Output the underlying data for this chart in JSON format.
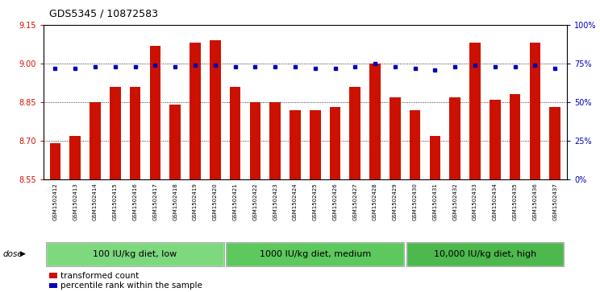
{
  "title": "GDS5345 / 10872583",
  "samples": [
    "GSM1502412",
    "GSM1502413",
    "GSM1502414",
    "GSM1502415",
    "GSM1502416",
    "GSM1502417",
    "GSM1502418",
    "GSM1502419",
    "GSM1502420",
    "GSM1502421",
    "GSM1502422",
    "GSM1502423",
    "GSM1502424",
    "GSM1502425",
    "GSM1502426",
    "GSM1502427",
    "GSM1502428",
    "GSM1502429",
    "GSM1502430",
    "GSM1502431",
    "GSM1502432",
    "GSM1502433",
    "GSM1502434",
    "GSM1502435",
    "GSM1502436",
    "GSM1502437"
  ],
  "bar_values": [
    8.69,
    8.72,
    8.85,
    8.91,
    8.91,
    9.07,
    8.84,
    9.08,
    9.09,
    8.91,
    8.85,
    8.85,
    8.82,
    8.82,
    8.83,
    8.91,
    9.0,
    8.87,
    8.82,
    8.72,
    8.87,
    9.08,
    8.86,
    8.88,
    9.08,
    8.83
  ],
  "percentile_values": [
    72,
    72,
    73,
    73,
    73,
    74,
    73,
    74,
    74,
    73,
    73,
    73,
    73,
    72,
    72,
    73,
    75,
    73,
    72,
    71,
    73,
    74,
    73,
    73,
    74,
    72
  ],
  "ymin": 8.55,
  "ymax": 9.15,
  "yticks": [
    8.55,
    8.7,
    8.85,
    9.0,
    9.15
  ],
  "y2min": 0,
  "y2max": 100,
  "y2ticks": [
    0,
    25,
    50,
    75,
    100
  ],
  "groups": [
    {
      "label": "100 IU/kg diet, low",
      "start": 0,
      "end": 9,
      "color": "#7ED87E"
    },
    {
      "label": "1000 IU/kg diet, medium",
      "start": 9,
      "end": 18,
      "color": "#5DC85D"
    },
    {
      "label": "10,000 IU/kg diet, high",
      "start": 18,
      "end": 26,
      "color": "#4DB84D"
    }
  ],
  "bar_color": "#CC1100",
  "percentile_color": "#0000BB",
  "bar_bottom": 8.55,
  "legend_items": [
    {
      "label": "transformed count",
      "color": "#CC1100"
    },
    {
      "label": "percentile rank within the sample",
      "color": "#0000BB"
    }
  ],
  "title_fontsize": 9,
  "tick_fontsize": 7,
  "xtick_fontsize": 5,
  "group_label_fontsize": 8,
  "dose_label": "dose",
  "tick_color_left": "#CC1100",
  "tick_color_right": "#0000BB",
  "xtick_bg_color": "#D8D8D8"
}
